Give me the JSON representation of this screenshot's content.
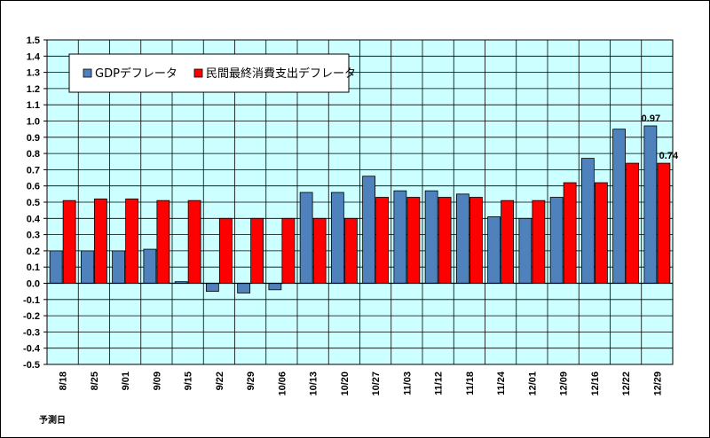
{
  "chart_data": {
    "type": "bar",
    "title": "",
    "xlabel": "予測日",
    "ylabel": "",
    "ylim": [
      -0.5,
      1.5
    ],
    "ytick_step": 0.1,
    "grid": true,
    "legend_position": "top-left",
    "categories": [
      "8/18",
      "8/25",
      "9/01",
      "9/09",
      "9/15",
      "9/22",
      "9/29",
      "10/06",
      "10/13",
      "10/20",
      "10/27",
      "11/03",
      "11/12",
      "11/18",
      "11/24",
      "12/01",
      "12/09",
      "12/16",
      "12/22",
      "12/29"
    ],
    "series": [
      {
        "name": "GDPデフレータ",
        "color": "#4f81bd",
        "values": [
          0.2,
          0.2,
          0.2,
          0.21,
          0.01,
          -0.05,
          -0.06,
          -0.04,
          0.56,
          0.56,
          0.66,
          0.57,
          0.57,
          0.55,
          0.41,
          0.4,
          0.53,
          0.77,
          0.95,
          0.97
        ]
      },
      {
        "name": "民間最終消費支出デフレータ",
        "color": "#ff0000",
        "values": [
          0.51,
          0.52,
          0.52,
          0.51,
          0.51,
          0.4,
          0.4,
          0.4,
          0.4,
          0.4,
          0.53,
          0.53,
          0.53,
          0.53,
          0.51,
          0.51,
          0.62,
          0.62,
          0.74,
          0.74
        ]
      }
    ],
    "annotations": [
      {
        "series": 0,
        "index": 19,
        "text": "0.97"
      },
      {
        "series": 1,
        "index": 19,
        "text": "0.74"
      }
    ],
    "colors": {
      "plot_background": "#ccffff",
      "grid": "#000000",
      "axis": "#000000"
    }
  }
}
